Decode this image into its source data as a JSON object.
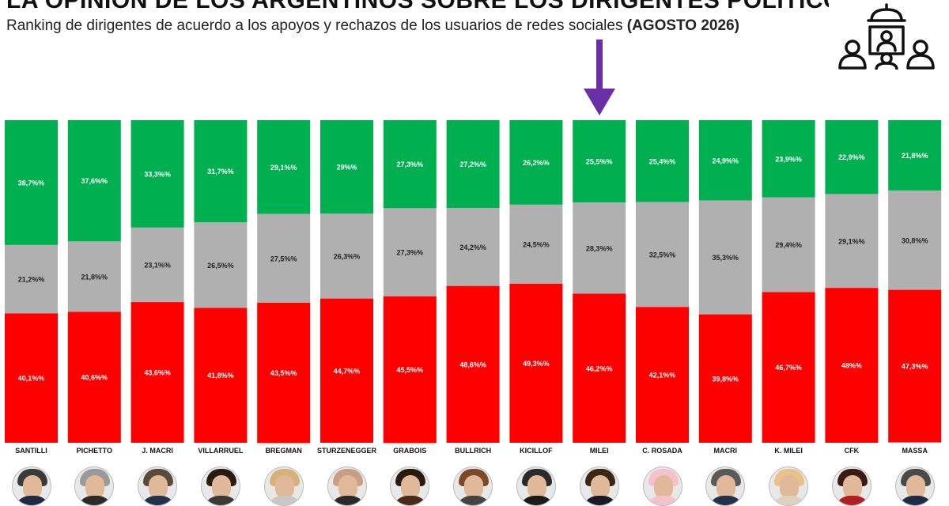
{
  "header": {
    "title": "LA OPINIÓN DE LOS ARGENTINOS SOBRE LOS DIRIGENTES POLÍTICOS",
    "subtitle": "Ranking de dirigentes de acuerdo a los apoyos y rechazos de los usuarios de redes sociales",
    "period": "(AGOSTO 2026)",
    "icon": "audience-podium-icon"
  },
  "highlight": {
    "icon": "down-arrow-icon",
    "color": "#6a2fa6",
    "target": "MILEI"
  },
  "colors": {
    "support": "#00b050",
    "neutral": "#b0b0b0",
    "reject": "#ff0000"
  },
  "chart_data": {
    "type": "bar",
    "stacked": true,
    "categories": [
      "SANTILLI",
      "PICHETTO",
      "J. MACRI",
      "VILLARRUEL",
      "BREGMAN",
      "STURZENEGGER",
      "GRABOIS",
      "BULLRICH",
      "KICILLOF",
      "MILEI",
      "C. ROSADA",
      "MACRI",
      "K. MILEI",
      "CFK",
      "MASSA"
    ],
    "series": [
      {
        "key": "support",
        "values": [
          38.7,
          37.6,
          33.3,
          31.7,
          29.1,
          29,
          27.3,
          27.2,
          26.2,
          25.5,
          25.4,
          24.9,
          23.9,
          22.9,
          21.8
        ],
        "labels": [
          "38,7%%",
          "37,6%%",
          "33,3%%",
          "31,7%%",
          "29,1%%",
          "29%%",
          "27,3%%",
          "27,2%%",
          "26,2%%",
          "25,5%%",
          "25,4%%",
          "24,9%%",
          "23,9%%",
          "22,9%%",
          "21,8%%"
        ]
      },
      {
        "key": "neutral",
        "values": [
          21.2,
          21.8,
          23.1,
          26.5,
          27.5,
          26.3,
          27.3,
          24.2,
          24.5,
          28.3,
          32.5,
          35.3,
          29.4,
          29.1,
          30.8
        ],
        "labels": [
          "21,2%%",
          "21,8%%",
          "23,1%%",
          "26,5%%",
          "27,5%%",
          "26,3%%",
          "27,3%%",
          "24,2%%",
          "24,5%%",
          "28,3%%",
          "32,5%%",
          "35,3%%",
          "29,4%%",
          "29,1%%",
          "30,8%%"
        ]
      },
      {
        "key": "reject",
        "values": [
          40.1,
          40.6,
          43.6,
          41.8,
          43.5,
          44.7,
          45.5,
          48.6,
          49.3,
          46.2,
          42.1,
          39.8,
          46.7,
          48,
          47.3
        ],
        "labels": [
          "40,1%%",
          "40,6%%",
          "43,6%%",
          "41,8%%",
          "43,5%%",
          "44,7%%",
          "45,5%%",
          "48,6%%",
          "49,3%%",
          "46,2%%",
          "42,1%%",
          "39,8%%",
          "46,7%%",
          "48%%",
          "47,3%%"
        ]
      }
    ],
    "title": "",
    "xlabel": "",
    "ylabel": "",
    "ylim": [
      0,
      100
    ],
    "grid": false,
    "legend": "none"
  },
  "avatars": [
    {
      "name": "SANTILLI",
      "hair": "#3a3a3a",
      "body": "#1f2a44"
    },
    {
      "name": "PICHETTO",
      "hair": "#9a9a9a",
      "body": "#2b2b2b"
    },
    {
      "name": "J. MACRI",
      "hair": "#5a4a3a",
      "body": "#23324a"
    },
    {
      "name": "VILLARRUEL",
      "hair": "#2a1a12",
      "body": "#3a3a3a"
    },
    {
      "name": "BREGMAN",
      "hair": "#d8b07a",
      "body": "#c8c8c8"
    },
    {
      "name": "STURZENEGGER",
      "hair": "#c89e86",
      "body": "#2a2a2a"
    },
    {
      "name": "GRABOIS",
      "hair": "#2a1a10",
      "body": "#4a2a1a"
    },
    {
      "name": "BULLRICH",
      "hair": "#7a4a2a",
      "body": "#444444"
    },
    {
      "name": "KICILLOF",
      "hair": "#2a2a2a",
      "body": "#1a1a1a"
    },
    {
      "name": "MILEI",
      "hair": "#3a2516",
      "body": "#1a1a2a"
    },
    {
      "name": "C. ROSADA",
      "hair": "#f4c2cf",
      "body": "#f4c2cf"
    },
    {
      "name": "MACRI",
      "hair": "#5a5a5a",
      "body": "#23324a"
    },
    {
      "name": "K. MILEI",
      "hair": "#e8c28a",
      "body": "#e0d0c0"
    },
    {
      "name": "CFK",
      "hair": "#3a1a14",
      "body": "#b02020"
    },
    {
      "name": "MASSA",
      "hair": "#4a4a4a",
      "body": "#1f2a44"
    }
  ]
}
